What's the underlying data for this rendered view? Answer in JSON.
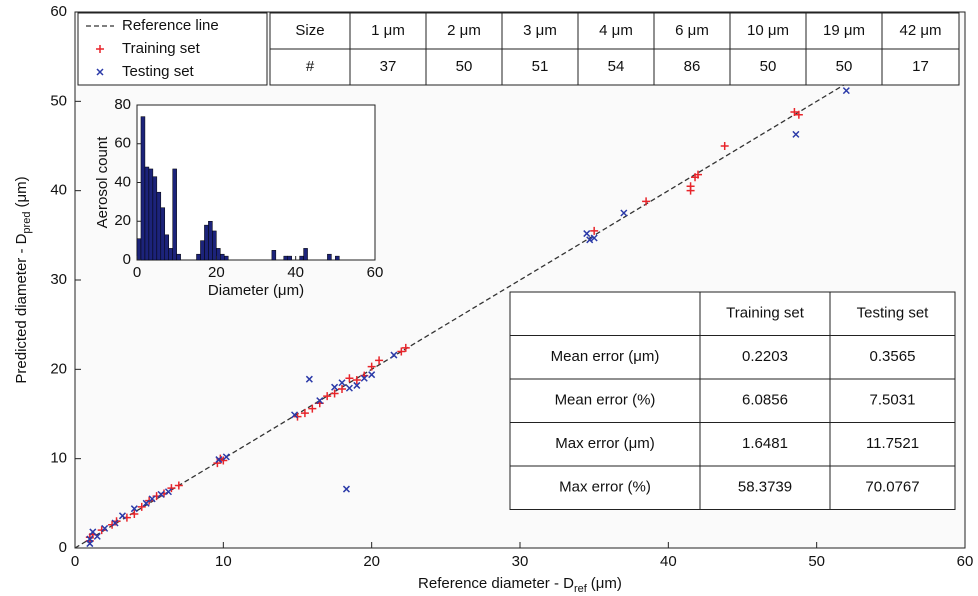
{
  "chart_data": [
    {
      "type": "scatter",
      "x_label": [
        "Reference diameter - D",
        "ref",
        "(μm)"
      ],
      "y_label": [
        "Predicted diameter - D",
        "pred",
        "(μm)"
      ],
      "xlim": [
        0,
        60
      ],
      "ylim": [
        0,
        60
      ],
      "xticks": [
        0,
        10,
        20,
        30,
        40,
        50,
        60
      ],
      "yticks": [
        0,
        10,
        20,
        30,
        40,
        50,
        60
      ],
      "legend": "upper left",
      "series": [
        {
          "name": "Reference line",
          "kind": "line",
          "color": "#333333",
          "x": [
            0,
            52
          ],
          "values": [
            0,
            52
          ]
        },
        {
          "name": "Training set",
          "kind": "plus",
          "color": "#e8242a",
          "x": [
            1,
            1,
            1.2,
            1.8,
            2.5,
            2.8,
            3.5,
            4,
            4.5,
            5,
            5.5,
            6,
            6.5,
            7,
            9.6,
            9.8,
            10,
            15,
            15.5,
            16,
            16.5,
            17,
            17.5,
            18,
            18.5,
            19,
            19.5,
            20,
            20.5,
            22,
            22.3,
            35,
            38.5,
            41.5,
            41.5,
            42,
            41.8,
            43.8,
            48.5,
            48.8
          ],
          "values": [
            1.2,
            0.8,
            1.5,
            2,
            2.6,
            3,
            3.4,
            3.8,
            4.6,
            5.3,
            5.8,
            6.1,
            6.7,
            7,
            9.5,
            10,
            9.8,
            14.7,
            15.1,
            15.6,
            16.2,
            17,
            17.3,
            17.8,
            19,
            18.8,
            19.3,
            20.3,
            21,
            22,
            22.4,
            35.5,
            38.8,
            40.5,
            40,
            41.8,
            41.5,
            45,
            48.8,
            48.5
          ]
        },
        {
          "name": "Testing set",
          "kind": "cross",
          "color": "#2b3aa8",
          "x": [
            1,
            1,
            1.2,
            1.5,
            2,
            2.7,
            3.2,
            4,
            4.8,
            5.2,
            5.8,
            6.3,
            9.7,
            10.2,
            14.8,
            15.8,
            16.5,
            17.5,
            18,
            18.3,
            18.5,
            19,
            19.5,
            20,
            21.5,
            34.5,
            34.7,
            35,
            37,
            48.6,
            52
          ],
          "values": [
            1,
            0.5,
            1.8,
            1.3,
            2.2,
            2.8,
            3.6,
            4.4,
            5,
            5.5,
            6,
            6.3,
            9.9,
            10.2,
            14.9,
            18.9,
            16.5,
            18,
            18.5,
            6.6,
            17.9,
            18.2,
            19,
            19.4,
            21.6,
            35.2,
            34.5,
            34.7,
            37.5,
            46.3,
            51.2
          ]
        }
      ]
    },
    {
      "type": "histogram",
      "x_label": "Diameter (μm)",
      "y_label": "Aerosol count",
      "xlim": [
        0,
        60
      ],
      "ylim": [
        0,
        80
      ],
      "xticks": [
        0,
        20,
        40,
        60
      ],
      "yticks": [
        0,
        20,
        40,
        60,
        80
      ],
      "color": "#1c237a",
      "bins": [
        0,
        1,
        2,
        3,
        4,
        5,
        6,
        7,
        8,
        9,
        10,
        11,
        12,
        13,
        14,
        15,
        16,
        17,
        18,
        19,
        20,
        21,
        22,
        23,
        24,
        25,
        26,
        27,
        28,
        29,
        30,
        31,
        32,
        33,
        34,
        35,
        36,
        37,
        38,
        39,
        40,
        41,
        42,
        43,
        44,
        45,
        46,
        47,
        48,
        49,
        50,
        51,
        52
      ],
      "counts": [
        11,
        74,
        48,
        47,
        43,
        35,
        27,
        13,
        6,
        47,
        3,
        0,
        0,
        0,
        0,
        3,
        10,
        18,
        20,
        15,
        6,
        3,
        2,
        0,
        0,
        0,
        0,
        0,
        0,
        0,
        0,
        0,
        0,
        0,
        5,
        0,
        0,
        2,
        2,
        0,
        0,
        2,
        6,
        0,
        0,
        0,
        0,
        0,
        3,
        0,
        2,
        0
      ]
    }
  ],
  "tables": {
    "sizes": {
      "rows": [
        [
          "Size",
          "1 μm",
          "2 μm",
          "3 μm",
          "4 μm",
          "6 μm",
          "10 μm",
          "19 μm",
          "42 μm"
        ],
        [
          "#",
          37,
          50,
          51,
          54,
          86,
          50,
          50,
          17
        ]
      ]
    },
    "errors": {
      "columns": [
        "Training set",
        "Testing set"
      ],
      "rows": [
        {
          "label": "Mean error (μm)",
          "values": [
            0.2203,
            0.3565
          ]
        },
        {
          "label": "Mean error (%)",
          "values": [
            6.0856,
            7.5031
          ]
        },
        {
          "label": "Max error (μm)",
          "values": [
            1.6481,
            11.7521
          ]
        },
        {
          "label": "Max error (%)",
          "values": [
            58.3739,
            70.0767
          ]
        }
      ]
    }
  }
}
